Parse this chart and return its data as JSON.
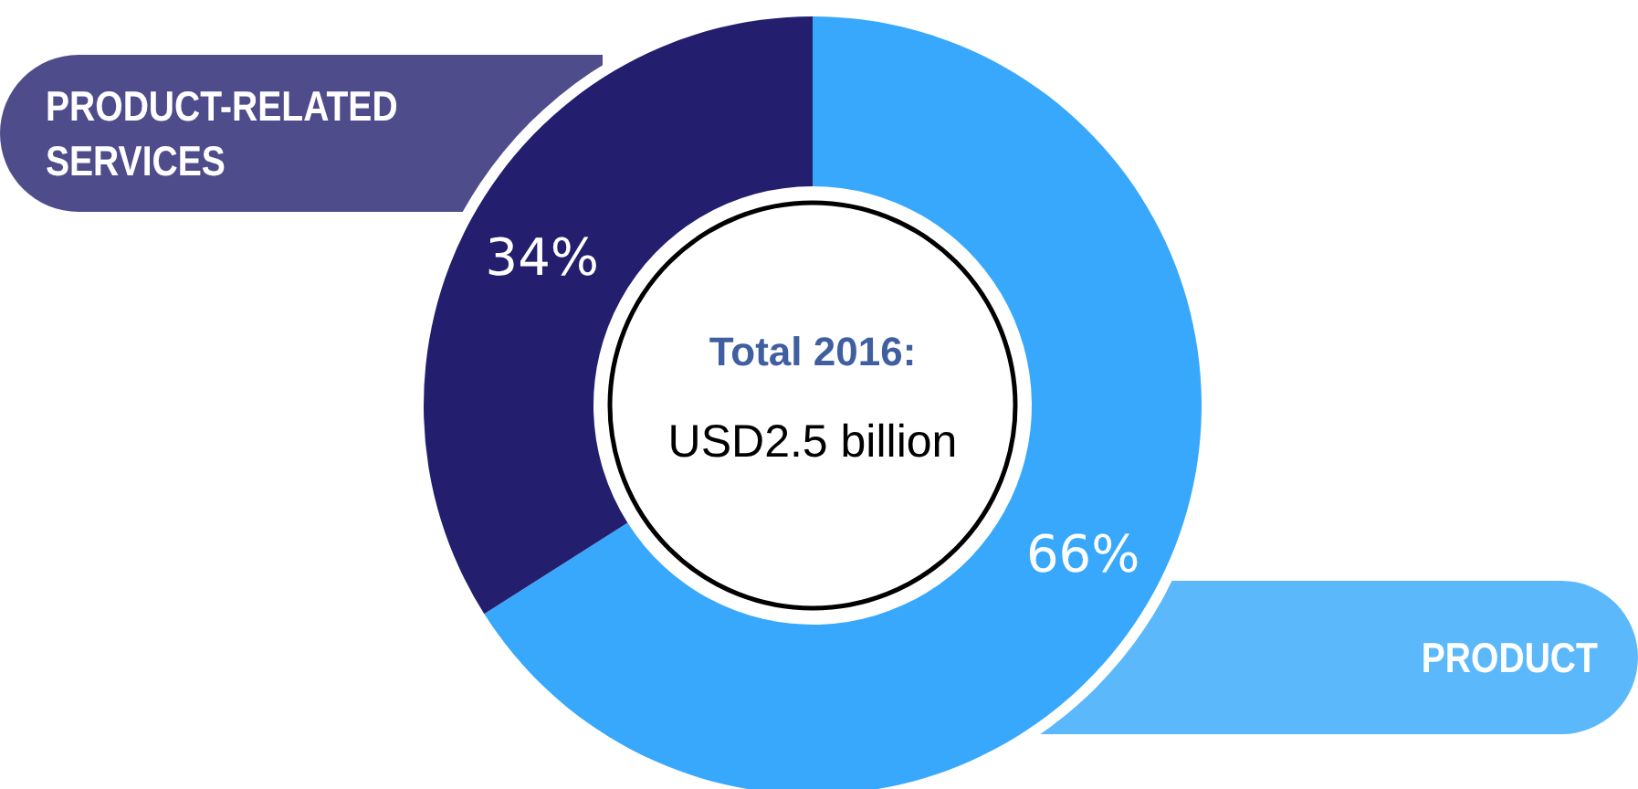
{
  "chart_data": {
    "type": "donut",
    "title": "Total 2016:",
    "subtitle": "USD2.5 billion",
    "categories": [
      "PRODUCT",
      "PRODUCT-RELATED SERVICES"
    ],
    "values": [
      66,
      34
    ],
    "value_labels": [
      "66%",
      "34%"
    ],
    "colors": [
      "#38a8fc",
      "#231f6e"
    ]
  }
}
